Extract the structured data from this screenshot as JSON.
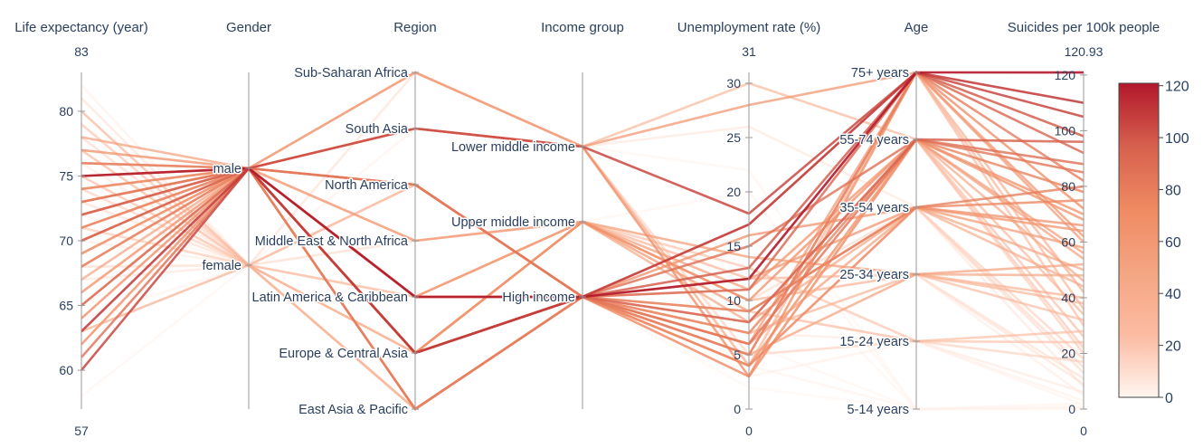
{
  "chart_data": {
    "type": "parallel_categories_coordinates",
    "color_scale": [
      "#fff5f0",
      "#fcbba1",
      "#f4a582",
      "#ef8a62",
      "#d6604d",
      "#b2182b"
    ],
    "axes": [
      {
        "key": "life",
        "label": "Life expectancy (year)",
        "kind": "numeric",
        "range": [
          57,
          83
        ],
        "range_top_label": "83",
        "range_bottom_label": "57",
        "ticks": [
          {
            "v": 60,
            "t": "60"
          },
          {
            "v": 65,
            "t": "65"
          },
          {
            "v": 70,
            "t": "70"
          },
          {
            "v": 75,
            "t": "75"
          },
          {
            "v": 80,
            "t": "80"
          }
        ]
      },
      {
        "key": "gender",
        "label": "Gender",
        "kind": "categorical",
        "categories": [
          "male",
          "female"
        ]
      },
      {
        "key": "region",
        "label": "Region",
        "kind": "categorical",
        "categories": [
          "Sub-Saharan Africa",
          "South Asia",
          "North America",
          "Middle East & North Africa",
          "Latin America & Caribbean",
          "Europe & Central Asia",
          "East Asia & Pacific"
        ]
      },
      {
        "key": "income",
        "label": "Income group",
        "kind": "categorical",
        "categories": [
          "Lower middle income",
          "Upper middle income",
          "High income"
        ]
      },
      {
        "key": "unemp",
        "label": "Unemployment rate (%)",
        "kind": "numeric",
        "range": [
          0,
          31
        ],
        "range_top_label": "31",
        "range_bottom_label": "0",
        "ticks": [
          {
            "v": 0,
            "t": "0"
          },
          {
            "v": 5,
            "t": "5"
          },
          {
            "v": 10,
            "t": "10"
          },
          {
            "v": 15,
            "t": "15"
          },
          {
            "v": 20,
            "t": "20"
          },
          {
            "v": 25,
            "t": "25"
          },
          {
            "v": 30,
            "t": "30"
          }
        ]
      },
      {
        "key": "age",
        "label": "Age",
        "kind": "categorical",
        "categories": [
          "75+ years",
          "55-74 years",
          "35-54 years",
          "25-34 years",
          "15-24 years",
          "5-14 years"
        ]
      },
      {
        "key": "suicides",
        "label": "Suicides per 100k people",
        "kind": "numeric",
        "range": [
          0,
          120.93
        ],
        "range_top_label": "120.93",
        "range_bottom_label": "0",
        "ticks": [
          {
            "v": 0,
            "t": "0"
          },
          {
            "v": 20,
            "t": "20"
          },
          {
            "v": 40,
            "t": "40"
          },
          {
            "v": 60,
            "t": "60"
          },
          {
            "v": 80,
            "t": "80"
          },
          {
            "v": 100,
            "t": "100"
          },
          {
            "v": 120,
            "t": "120"
          }
        ]
      }
    ],
    "colorbar": {
      "range": [
        0,
        120.93
      ],
      "ticks": [
        "0",
        "20",
        "40",
        "60",
        "80",
        "100",
        "120"
      ]
    },
    "records": [
      [
        75,
        0,
        4,
        2,
        12,
        0,
        120.9
      ],
      [
        63,
        0,
        5,
        2,
        17,
        0,
        110
      ],
      [
        60,
        0,
        1,
        0,
        18,
        0,
        105
      ],
      [
        72,
        0,
        5,
        2,
        13,
        0,
        98
      ],
      [
        70,
        0,
        4,
        2,
        8,
        1,
        96
      ],
      [
        65,
        0,
        5,
        2,
        11,
        0,
        92
      ],
      [
        61,
        0,
        5,
        2,
        15,
        1,
        88
      ],
      [
        73,
        0,
        2,
        2,
        6,
        1,
        85
      ],
      [
        76,
        0,
        6,
        2,
        5,
        0,
        82
      ],
      [
        68,
        0,
        5,
        2,
        9,
        2,
        80
      ],
      [
        71,
        0,
        4,
        2,
        7,
        1,
        78
      ],
      [
        74,
        0,
        2,
        2,
        4,
        2,
        75
      ],
      [
        64,
        0,
        1,
        0,
        3,
        0,
        72
      ],
      [
        69,
        0,
        5,
        1,
        10,
        1,
        70
      ],
      [
        77,
        0,
        6,
        2,
        3,
        1,
        68
      ],
      [
        62,
        0,
        5,
        2,
        16,
        2,
        66
      ],
      [
        75,
        0,
        4,
        2,
        12,
        2,
        64
      ],
      [
        70,
        0,
        0,
        0,
        28,
        0,
        62
      ],
      [
        73,
        0,
        2,
        2,
        6,
        0,
        60
      ],
      [
        66,
        0,
        4,
        1,
        9,
        2,
        58
      ],
      [
        72,
        0,
        3,
        1,
        11,
        1,
        56
      ],
      [
        78,
        0,
        6,
        2,
        4,
        1,
        54
      ],
      [
        67,
        0,
        5,
        1,
        14,
        3,
        52
      ],
      [
        71,
        0,
        4,
        1,
        8,
        2,
        50
      ],
      [
        74,
        0,
        2,
        2,
        5,
        3,
        48
      ],
      [
        68,
        0,
        1,
        0,
        4,
        1,
        46
      ],
      [
        76,
        0,
        6,
        2,
        6,
        2,
        44
      ],
      [
        63,
        1,
        5,
        2,
        17,
        0,
        42
      ],
      [
        69,
        0,
        5,
        1,
        10,
        3,
        40
      ],
      [
        73,
        0,
        4,
        2,
        7,
        3,
        38
      ],
      [
        80,
        1,
        6,
        2,
        4,
        0,
        36
      ],
      [
        65,
        0,
        0,
        0,
        30,
        1,
        34
      ],
      [
        72,
        0,
        3,
        1,
        12,
        3,
        32
      ],
      [
        77,
        1,
        2,
        2,
        5,
        0,
        30
      ],
      [
        70,
        0,
        4,
        2,
        9,
        4,
        28
      ],
      [
        75,
        1,
        4,
        2,
        8,
        1,
        26
      ],
      [
        66,
        0,
        5,
        1,
        13,
        4,
        24
      ],
      [
        79,
        1,
        6,
        2,
        3,
        1,
        22
      ],
      [
        71,
        1,
        5,
        2,
        11,
        1,
        20
      ],
      [
        74,
        1,
        2,
        2,
        6,
        2,
        18
      ],
      [
        62,
        0,
        1,
        0,
        5,
        4,
        17
      ],
      [
        78,
        1,
        6,
        2,
        4,
        2,
        15
      ],
      [
        68,
        1,
        4,
        1,
        10,
        2,
        13
      ],
      [
        73,
        1,
        3,
        1,
        14,
        3,
        11
      ],
      [
        81,
        1,
        6,
        2,
        5,
        3,
        9
      ],
      [
        67,
        1,
        0,
        0,
        26,
        2,
        8
      ],
      [
        76,
        1,
        2,
        2,
        7,
        4,
        6
      ],
      [
        70,
        1,
        5,
        1,
        12,
        3,
        5
      ],
      [
        82,
        1,
        6,
        2,
        3,
        4,
        3
      ],
      [
        64,
        1,
        1,
        0,
        4,
        5,
        2
      ],
      [
        72,
        1,
        4,
        1,
        9,
        4,
        1.5
      ],
      [
        75,
        1,
        3,
        1,
        20,
        5,
        0.8
      ],
      [
        79,
        1,
        2,
        2,
        6,
        5,
        0.5
      ],
      [
        58,
        1,
        0,
        0,
        22,
        5,
        0.3
      ],
      [
        71,
        1,
        5,
        2,
        16,
        5,
        0.4
      ],
      [
        77,
        1,
        6,
        2,
        2,
        5,
        0.2
      ]
    ]
  }
}
